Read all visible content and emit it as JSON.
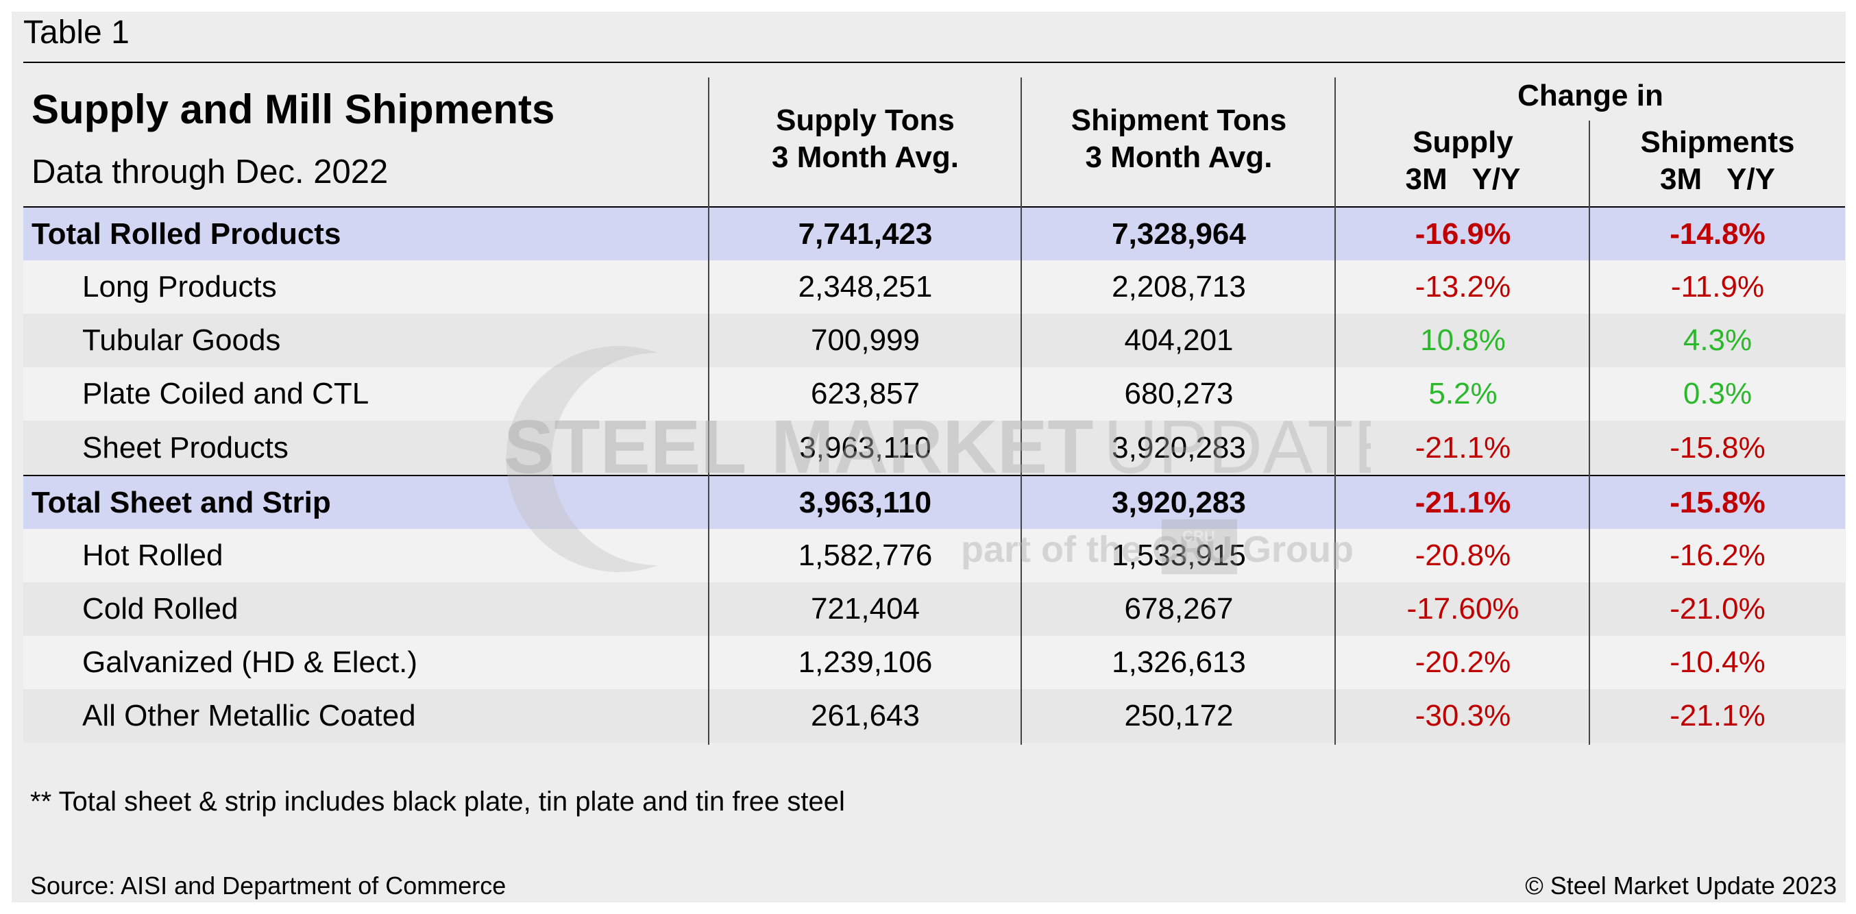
{
  "caption": "Table 1",
  "table": {
    "title": "Supply and Mill Shipments",
    "subtitle": "Data through Dec. 2022",
    "headers": {
      "supply_line1": "Supply Tons",
      "supply_line2": "3 Month Avg.",
      "ship_line1": "Shipment Tons",
      "ship_line2": "3 Month Avg.",
      "change_in": "Change in",
      "supply_chg_line1": "Supply",
      "supply_chg_line2": "3M   Y/Y",
      "ship_chg_line1": "Shipments",
      "ship_chg_line2": "3M   Y/Y"
    },
    "rows": [
      {
        "label": "Total Rolled Products",
        "supply": "7,741,423",
        "shipments": "7,328,964",
        "supply_change": "-16.9%",
        "ship_change": "-14.8%"
      },
      {
        "label": "Long Products",
        "supply": "2,348,251",
        "shipments": "2,208,713",
        "supply_change": "-13.2%",
        "ship_change": "-11.9%"
      },
      {
        "label": "Tubular Goods",
        "supply": "700,999",
        "shipments": "404,201",
        "supply_change": "10.8%",
        "ship_change": "4.3%"
      },
      {
        "label": "Plate Coiled and CTL",
        "supply": "623,857",
        "shipments": "680,273",
        "supply_change": "5.2%",
        "ship_change": "0.3%"
      },
      {
        "label": "Sheet Products",
        "supply": "3,963,110",
        "shipments": "3,920,283",
        "supply_change": "-21.1%",
        "ship_change": "-15.8%"
      },
      {
        "label": "Total Sheet and Strip",
        "supply": "3,963,110",
        "shipments": "3,920,283",
        "supply_change": "-21.1%",
        "ship_change": "-15.8%"
      },
      {
        "label": "Hot Rolled",
        "supply": "1,582,776",
        "shipments": "1,533,915",
        "supply_change": "-20.8%",
        "ship_change": "-16.2%"
      },
      {
        "label": "Cold Rolled",
        "supply": "721,404",
        "shipments": "678,267",
        "supply_change": "-17.60%",
        "ship_change": "-21.0%"
      },
      {
        "label": "Galvanized (HD & Elect.)",
        "supply": "1,239,106",
        "shipments": "1,326,613",
        "supply_change": "-20.2%",
        "ship_change": "-10.4%"
      },
      {
        "label": "All Other Metallic Coated",
        "supply": "261,643",
        "shipments": "250,172",
        "supply_change": "-30.3%",
        "ship_change": "-21.1%"
      }
    ]
  },
  "footnote": "** Total sheet & strip includes black plate, tin plate and tin free steel",
  "source": "Source: AISI and Department of Commerce",
  "copyright": "© Steel Market Update 2023",
  "watermark": {
    "line1_a": "STEEL",
    "line1_b": "MARKET",
    "line1_c": "UPDATE",
    "line2": "part of the CRU Group",
    "mark": "CRU"
  },
  "colors": {
    "total_row_bg": "#d3d6f2",
    "negative": "#c00000",
    "positive": "#2bb92b",
    "panel_bg": "#ededed"
  }
}
